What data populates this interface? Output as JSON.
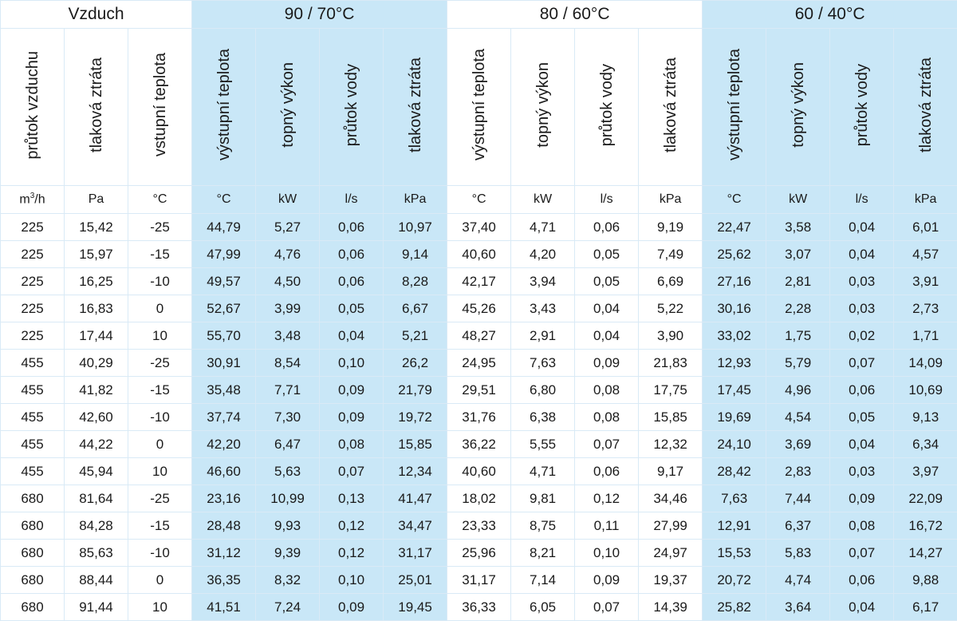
{
  "groups": {
    "air": "Vzduch",
    "g1": "90 / 70°C",
    "g2": "80 / 60°C",
    "g3": "60 / 40°C"
  },
  "columns": [
    "průtok vzduchu",
    "tlaková ztráta",
    "vstupní teplota",
    "výstupní teplota",
    "topný výkon",
    "průtok vody",
    "tlaková ztráta",
    "výstupní teplota",
    "topný výkon",
    "průtok vody",
    "tlaková ztráta",
    "výstupní teplota",
    "topný výkon",
    "průtok vody",
    "tlaková ztráta"
  ],
  "units": {
    "flow_base": "m",
    "flow_exp": "3",
    "flow_tail": "/h",
    "list": [
      "Pa",
      "°C",
      "°C",
      "kW",
      "l/s",
      "kPa",
      "°C",
      "kW",
      "l/s",
      "kPa",
      "°C",
      "kW",
      "l/s",
      "kPa"
    ]
  },
  "colors": {
    "highlight": "#c9e7f7",
    "border": "#d9eaf6"
  },
  "rows": [
    [
      "225",
      "15,42",
      "-25",
      "44,79",
      "5,27",
      "0,06",
      "10,97",
      "37,40",
      "4,71",
      "0,06",
      "9,19",
      "22,47",
      "3,58",
      "0,04",
      "6,01"
    ],
    [
      "225",
      "15,97",
      "-15",
      "47,99",
      "4,76",
      "0,06",
      "9,14",
      "40,60",
      "4,20",
      "0,05",
      "7,49",
      "25,62",
      "3,07",
      "0,04",
      "4,57"
    ],
    [
      "225",
      "16,25",
      "-10",
      "49,57",
      "4,50",
      "0,06",
      "8,28",
      "42,17",
      "3,94",
      "0,05",
      "6,69",
      "27,16",
      "2,81",
      "0,03",
      "3,91"
    ],
    [
      "225",
      "16,83",
      "0",
      "52,67",
      "3,99",
      "0,05",
      "6,67",
      "45,26",
      "3,43",
      "0,04",
      "5,22",
      "30,16",
      "2,28",
      "0,03",
      "2,73"
    ],
    [
      "225",
      "17,44",
      "10",
      "55,70",
      "3,48",
      "0,04",
      "5,21",
      "48,27",
      "2,91",
      "0,04",
      "3,90",
      "33,02",
      "1,75",
      "0,02",
      "1,71"
    ],
    [
      "455",
      "40,29",
      "-25",
      "30,91",
      "8,54",
      "0,10",
      "26,2",
      "24,95",
      "7,63",
      "0,09",
      "21,83",
      "12,93",
      "5,79",
      "0,07",
      "14,09"
    ],
    [
      "455",
      "41,82",
      "-15",
      "35,48",
      "7,71",
      "0,09",
      "21,79",
      "29,51",
      "6,80",
      "0,08",
      "17,75",
      "17,45",
      "4,96",
      "0,06",
      "10,69"
    ],
    [
      "455",
      "42,60",
      "-10",
      "37,74",
      "7,30",
      "0,09",
      "19,72",
      "31,76",
      "6,38",
      "0,08",
      "15,85",
      "19,69",
      "4,54",
      "0,05",
      "9,13"
    ],
    [
      "455",
      "44,22",
      "0",
      "42,20",
      "6,47",
      "0,08",
      "15,85",
      "36,22",
      "5,55",
      "0,07",
      "12,32",
      "24,10",
      "3,69",
      "0,04",
      "6,34"
    ],
    [
      "455",
      "45,94",
      "10",
      "46,60",
      "5,63",
      "0,07",
      "12,34",
      "40,60",
      "4,71",
      "0,06",
      "9,17",
      "28,42",
      "2,83",
      "0,03",
      "3,97"
    ],
    [
      "680",
      "81,64",
      "-25",
      "23,16",
      "10,99",
      "0,13",
      "41,47",
      "18,02",
      "9,81",
      "0,12",
      "34,46",
      "7,63",
      "7,44",
      "0,09",
      "22,09"
    ],
    [
      "680",
      "84,28",
      "-15",
      "28,48",
      "9,93",
      "0,12",
      "34,47",
      "23,33",
      "8,75",
      "0,11",
      "27,99",
      "12,91",
      "6,37",
      "0,08",
      "16,72"
    ],
    [
      "680",
      "85,63",
      "-10",
      "31,12",
      "9,39",
      "0,12",
      "31,17",
      "25,96",
      "8,21",
      "0,10",
      "24,97",
      "15,53",
      "5,83",
      "0,07",
      "14,27"
    ],
    [
      "680",
      "88,44",
      "0",
      "36,35",
      "8,32",
      "0,10",
      "25,01",
      "31,17",
      "7,14",
      "0,09",
      "19,37",
      "20,72",
      "4,74",
      "0,06",
      "9,88"
    ],
    [
      "680",
      "91,44",
      "10",
      "41,51",
      "7,24",
      "0,09",
      "19,45",
      "36,33",
      "6,05",
      "0,07",
      "14,39",
      "25,82",
      "3,64",
      "0,04",
      "6,17"
    ]
  ]
}
